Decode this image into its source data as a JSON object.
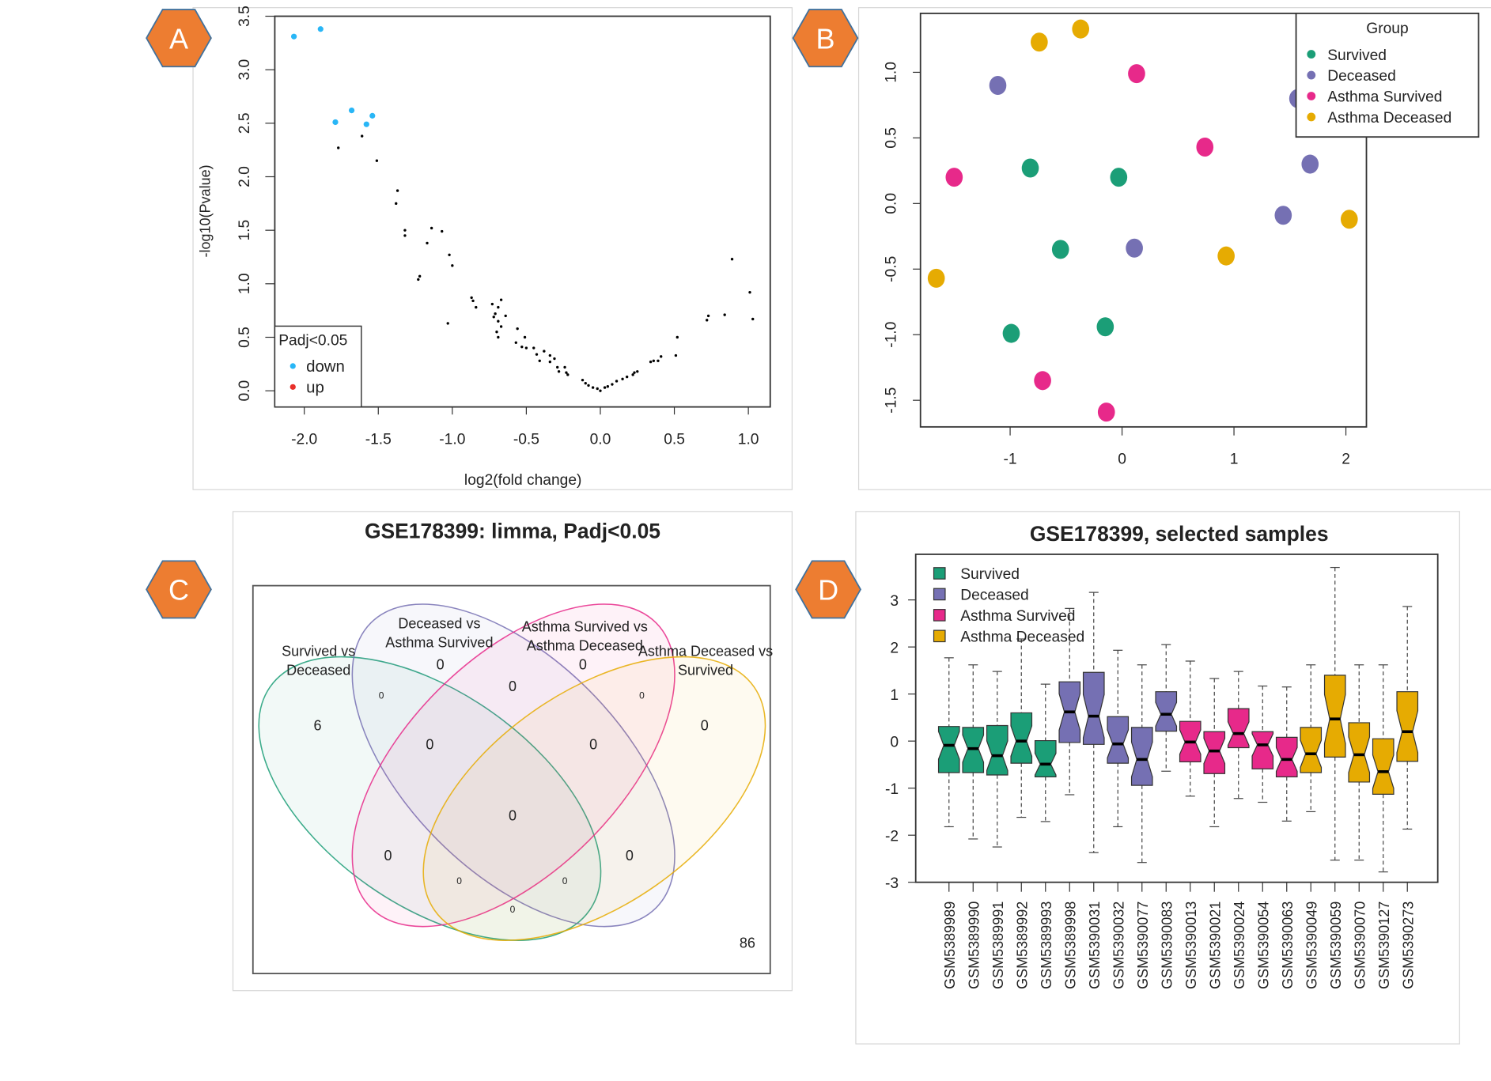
{
  "panels": [
    {
      "letter": "A"
    },
    {
      "letter": "B"
    },
    {
      "letter": "C"
    },
    {
      "letter": "D"
    }
  ],
  "colors": {
    "badge_fill": "#ed7d31",
    "badge_stroke": "#41719c",
    "survived": "#1b9e77",
    "deceased": "#7570b3",
    "asthma_survived": "#e7298a",
    "asthma_deceased": "#e6ab02"
  },
  "chart_data": [
    {
      "type": "scatter",
      "xlabel": "log2(fold change)",
      "ylabel": "-log10(Pvalue)",
      "xlim": [
        -2.2,
        1.15
      ],
      "ylim": [
        -0.15,
        3.5
      ],
      "x_ticks": [
        -2.0,
        -1.5,
        -1.0,
        -0.5,
        0.0,
        0.5,
        1.0
      ],
      "x_tick_labels": [
        "-2.0",
        "-1.5",
        "-1.0",
        "-0.5",
        "0.0",
        "0.5",
        "1.0"
      ],
      "y_ticks": [
        0.0,
        0.5,
        1.0,
        1.5,
        2.0,
        2.5,
        3.0,
        3.5
      ],
      "y_tick_labels": [
        "0.0",
        "0.5",
        "1.0",
        "1.5",
        "2.0",
        "2.5",
        "3.0",
        "3.5"
      ],
      "grid": false,
      "legend": {
        "title": "Padj<0.05",
        "position": "bottom-left",
        "items": [
          {
            "name": "down",
            "color": "#29b6f6"
          },
          {
            "name": "up",
            "color": "#e8302a"
          }
        ]
      },
      "series": [
        {
          "name": "down",
          "color": "#29b6f6",
          "points": [
            [
              -2.07,
              3.31
            ],
            [
              -1.89,
              3.38
            ],
            [
              -1.79,
              2.51
            ],
            [
              -1.68,
              2.62
            ],
            [
              -1.58,
              2.49
            ],
            [
              -1.54,
              2.57
            ]
          ]
        },
        {
          "name": "up",
          "color": "#e8302a",
          "points": []
        },
        {
          "color": "#000000",
          "points": [
            [
              -1.77,
              2.27
            ],
            [
              -1.61,
              2.38
            ],
            [
              -1.51,
              2.15
            ],
            [
              -1.37,
              1.87
            ],
            [
              -1.38,
              1.75
            ],
            [
              -1.32,
              1.5
            ],
            [
              -1.32,
              1.45
            ],
            [
              -1.14,
              1.52
            ],
            [
              -1.07,
              1.49
            ],
            [
              -1.17,
              1.38
            ],
            [
              -1.02,
              1.27
            ],
            [
              -1.0,
              1.17
            ],
            [
              -1.22,
              1.07
            ],
            [
              -1.23,
              1.04
            ],
            [
              -1.03,
              0.63
            ],
            [
              -0.87,
              0.87
            ],
            [
              -0.86,
              0.84
            ],
            [
              -0.84,
              0.78
            ],
            [
              -0.73,
              0.81
            ],
            [
              -0.69,
              0.78
            ],
            [
              -0.67,
              0.85
            ],
            [
              -0.71,
              0.72
            ],
            [
              -0.72,
              0.69
            ],
            [
              -0.64,
              0.7
            ],
            [
              -0.69,
              0.65
            ],
            [
              -0.67,
              0.6
            ],
            [
              -0.7,
              0.55
            ],
            [
              -0.69,
              0.5
            ],
            [
              -0.56,
              0.58
            ],
            [
              -0.51,
              0.5
            ],
            [
              -0.57,
              0.45
            ],
            [
              -0.53,
              0.41
            ],
            [
              -0.5,
              0.4
            ],
            [
              -0.45,
              0.4
            ],
            [
              -0.43,
              0.34
            ],
            [
              -0.41,
              0.28
            ],
            [
              -0.38,
              0.37
            ],
            [
              -0.34,
              0.33
            ],
            [
              -0.34,
              0.27
            ],
            [
              -0.31,
              0.3
            ],
            [
              -0.29,
              0.22
            ],
            [
              -0.28,
              0.18
            ],
            [
              -0.24,
              0.22
            ],
            [
              -0.23,
              0.17
            ],
            [
              -0.22,
              0.15
            ],
            [
              -0.12,
              0.1
            ],
            [
              -0.1,
              0.07
            ],
            [
              -0.08,
              0.05
            ],
            [
              -0.05,
              0.03
            ],
            [
              -0.02,
              0.02
            ],
            [
              0.0,
              0.0
            ],
            [
              0.03,
              0.03
            ],
            [
              0.05,
              0.04
            ],
            [
              0.08,
              0.06
            ],
            [
              0.11,
              0.09
            ],
            [
              0.15,
              0.11
            ],
            [
              0.18,
              0.13
            ],
            [
              0.22,
              0.15
            ],
            [
              0.23,
              0.17
            ],
            [
              0.25,
              0.18
            ],
            [
              0.34,
              0.27
            ],
            [
              0.36,
              0.28
            ],
            [
              0.39,
              0.28
            ],
            [
              0.41,
              0.32
            ],
            [
              0.51,
              0.33
            ],
            [
              0.52,
              0.5
            ],
            [
              0.72,
              0.66
            ],
            [
              0.73,
              0.7
            ],
            [
              0.84,
              0.71
            ],
            [
              0.89,
              1.23
            ],
            [
              1.01,
              0.92
            ],
            [
              1.03,
              0.67
            ]
          ]
        }
      ]
    },
    {
      "type": "scatter",
      "xlim": [
        -1.8,
        2.18
      ],
      "ylim": [
        -1.69,
        1.46
      ],
      "x_ticks": [
        -1,
        0,
        1,
        2
      ],
      "x_tick_labels": [
        "-1",
        "0",
        "1",
        "2"
      ],
      "y_ticks": [
        -1.5,
        -1.0,
        -0.5,
        0.0,
        0.5,
        1.0
      ],
      "y_tick_labels": [
        "-1.5",
        "-1.0",
        "-0.5",
        "0.0",
        "0.5",
        "1.0"
      ],
      "grid": false,
      "legend": {
        "title": "Group",
        "position": "top-right"
      },
      "series": [
        {
          "name": "Survived",
          "color": "#1b9e77",
          "points": [
            [
              -0.82,
              0.27
            ],
            [
              -0.03,
              0.2
            ],
            [
              -0.55,
              -0.35
            ],
            [
              -0.99,
              -0.99
            ],
            [
              -0.15,
              -0.94
            ]
          ]
        },
        {
          "name": "Deceased",
          "color": "#7570b3",
          "points": [
            [
              -1.11,
              0.9
            ],
            [
              0.11,
              -0.34
            ],
            [
              1.44,
              -0.09
            ],
            [
              1.68,
              0.3
            ],
            [
              1.57,
              0.8
            ]
          ]
        },
        {
          "name": "Asthma Survived",
          "color": "#e7298a",
          "points": [
            [
              0.13,
              0.99
            ],
            [
              -1.5,
              0.2
            ],
            [
              0.74,
              0.43
            ],
            [
              -0.71,
              -1.35
            ],
            [
              -0.14,
              -1.59
            ]
          ]
        },
        {
          "name": "Asthma Deceased",
          "color": "#e6ab02",
          "points": [
            [
              -0.74,
              1.23
            ],
            [
              -0.37,
              1.33
            ],
            [
              0.93,
              -0.4
            ],
            [
              2.03,
              -0.12
            ],
            [
              -1.66,
              -0.57
            ]
          ]
        }
      ]
    },
    {
      "type": "venn",
      "title": "GSE178399: limma, Padj<0.05",
      "sets": [
        {
          "line1": "Survived vs",
          "line2": "Deceased",
          "color": "#1b9e77"
        },
        {
          "line1": "Deceased vs",
          "line2": "Asthma Survived",
          "color": "#7570b3"
        },
        {
          "line1": "Asthma Survived vs",
          "line2": "Asthma Deceased",
          "color": "#e7298a"
        },
        {
          "line1": "Asthma Deceased vs",
          "line2": "Survived",
          "color": "#e6ab02"
        }
      ],
      "region_counts": [
        "6",
        "0",
        "0",
        "0",
        "0",
        "0",
        "0",
        "0",
        "0",
        "0",
        "0",
        "0",
        "0",
        "0",
        "0"
      ],
      "outside_count": "86"
    },
    {
      "type": "boxplot",
      "title": "GSE178399, selected samples",
      "ylim": [
        -3.03,
        3.97
      ],
      "y_ticks": [
        -3,
        -2,
        -1,
        0,
        1,
        2,
        3
      ],
      "y_tick_labels": [
        "-3",
        "-2",
        "-1",
        "0",
        "1",
        "2",
        "3"
      ],
      "legend": {
        "position": "top-left",
        "items": [
          {
            "name": "Survived",
            "color": "#1b9e77"
          },
          {
            "name": "Deceased",
            "color": "#7570b3"
          },
          {
            "name": "Asthma Survived",
            "color": "#e7298a"
          },
          {
            "name": "Asthma Deceased",
            "color": "#e6ab02"
          }
        ]
      },
      "categories": [
        "GSM5389989",
        "GSM5389990",
        "GSM5389991",
        "GSM5389992",
        "GSM5389993",
        "GSM5389998",
        "GSM5390031",
        "GSM5390032",
        "GSM5390077",
        "GSM5390083",
        "GSM5390013",
        "GSM5390021",
        "GSM5390024",
        "GSM5390054",
        "GSM5390063",
        "GSM5390049",
        "GSM5390059",
        "GSM5390070",
        "GSM5390127",
        "GSM5390273"
      ],
      "groups": [
        0,
        0,
        0,
        0,
        0,
        1,
        1,
        1,
        1,
        1,
        2,
        2,
        2,
        2,
        2,
        3,
        3,
        3,
        3,
        3
      ],
      "boxes": [
        {
          "low": -1.82,
          "q1": -0.67,
          "median": -0.09,
          "q3": 0.31,
          "high": 1.77
        },
        {
          "low": -2.08,
          "q1": -0.67,
          "median": -0.16,
          "q3": 0.29,
          "high": 1.62
        },
        {
          "low": -2.25,
          "q1": -0.72,
          "median": -0.31,
          "q3": 0.33,
          "high": 1.48
        },
        {
          "low": -1.62,
          "q1": -0.47,
          "median": 0.0,
          "q3": 0.6,
          "high": 2.17
        },
        {
          "low": -1.71,
          "q1": -0.76,
          "median": -0.49,
          "q3": 0.01,
          "high": 1.21
        },
        {
          "low": -1.14,
          "q1": -0.03,
          "median": 0.62,
          "q3": 1.26,
          "high": 2.82
        },
        {
          "low": -2.37,
          "q1": -0.07,
          "median": 0.53,
          "q3": 1.46,
          "high": 3.16
        },
        {
          "low": -1.82,
          "q1": -0.47,
          "median": -0.06,
          "q3": 0.52,
          "high": 1.93
        },
        {
          "low": -2.58,
          "q1": -0.94,
          "median": -0.39,
          "q3": 0.29,
          "high": 1.62
        },
        {
          "low": -0.64,
          "q1": 0.21,
          "median": 0.57,
          "q3": 1.05,
          "high": 2.05
        },
        {
          "low": -1.17,
          "q1": -0.44,
          "median": -0.02,
          "q3": 0.42,
          "high": 1.7
        },
        {
          "low": -1.82,
          "q1": -0.69,
          "median": -0.21,
          "q3": 0.2,
          "high": 1.33
        },
        {
          "low": -1.22,
          "q1": -0.14,
          "median": 0.16,
          "q3": 0.69,
          "high": 1.48
        },
        {
          "low": -1.3,
          "q1": -0.59,
          "median": -0.08,
          "q3": 0.2,
          "high": 1.17
        },
        {
          "low": -1.7,
          "q1": -0.76,
          "median": -0.39,
          "q3": 0.08,
          "high": 1.15
        },
        {
          "low": -1.5,
          "q1": -0.67,
          "median": -0.27,
          "q3": 0.29,
          "high": 1.62
        },
        {
          "low": -2.53,
          "q1": -0.34,
          "median": 0.47,
          "q3": 1.4,
          "high": 3.69
        },
        {
          "low": -2.53,
          "q1": -0.87,
          "median": -0.29,
          "q3": 0.39,
          "high": 1.62
        },
        {
          "low": -2.78,
          "q1": -1.13,
          "median": -0.65,
          "q3": 0.05,
          "high": 1.62
        },
        {
          "low": -1.87,
          "q1": -0.43,
          "median": 0.2,
          "q3": 1.05,
          "high": 2.86
        }
      ]
    }
  ]
}
